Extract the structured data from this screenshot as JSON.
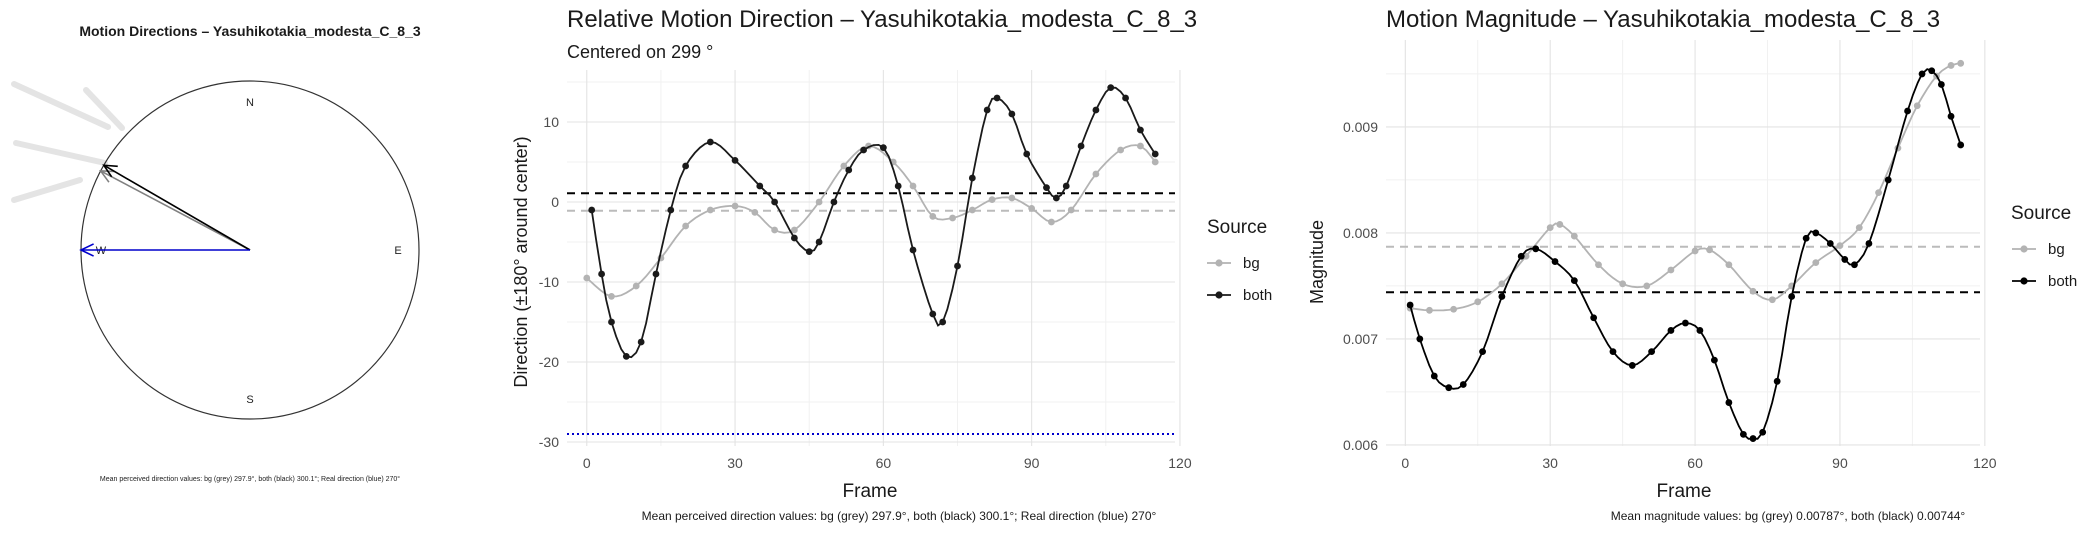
{
  "chart_data": [
    {
      "type": "compass",
      "title": "Motion Directions – Yasuhikotakia_modesta_C_8_3",
      "compass_labels": {
        "n": "N",
        "e": "E",
        "s": "S",
        "w": "W"
      },
      "arrows": [
        {
          "series": "bg",
          "direction_deg": 297.9,
          "color": "#808080"
        },
        {
          "series": "both",
          "direction_deg": 300.1,
          "color": "#000000"
        },
        {
          "series": "real",
          "direction_deg": 270,
          "color": "#0000cc"
        }
      ],
      "caption": "Mean perceived direction values: bg (grey) 297.9°, both (black) 300.1°; Real direction (blue) 270°"
    },
    {
      "type": "line",
      "title": "Relative Motion Direction – Yasuhikotakia_modesta_C_8_3",
      "subtitle": "Centered on  299 °",
      "xlabel": "Frame",
      "ylabel": "Direction (±180° around center)",
      "xlim": [
        -4,
        119
      ],
      "ylim": [
        -30.5,
        16.5
      ],
      "xticks": [
        "0",
        "30",
        "60",
        "90",
        "120"
      ],
      "yticks": [
        "10",
        "0",
        "-10",
        "-20",
        "-30"
      ],
      "legend_title": "Source",
      "legend_position": "right",
      "hlines": [
        {
          "series": "bg",
          "y": -1.1,
          "style": "dashed",
          "color": "#bbbbbb"
        },
        {
          "series": "both",
          "y": 1.1,
          "style": "dashed",
          "color": "#000000"
        },
        {
          "series": "real",
          "y": -29,
          "style": "dotted",
          "color": "#0000cc"
        }
      ],
      "series": [
        {
          "name": "bg",
          "color": "#b3b3b3",
          "points": [
            [
              0,
              -9.5
            ],
            [
              5,
              -11.8
            ],
            [
              10,
              -10.5
            ],
            [
              15,
              -7
            ],
            [
              20,
              -3
            ],
            [
              25,
              -1
            ],
            [
              30,
              -0.5
            ],
            [
              34,
              -1.3
            ],
            [
              38,
              -3.5
            ],
            [
              42,
              -3.5
            ],
            [
              47,
              0
            ],
            [
              52,
              4.5
            ],
            [
              57,
              7
            ],
            [
              62,
              5
            ],
            [
              66,
              2
            ],
            [
              70,
              -1.8
            ],
            [
              74,
              -2
            ],
            [
              78,
              -1
            ],
            [
              82,
              0.3
            ],
            [
              86,
              0.5
            ],
            [
              90,
              -0.8
            ],
            [
              94,
              -2.5
            ],
            [
              98,
              -1
            ],
            [
              103,
              3.5
            ],
            [
              108,
              6.5
            ],
            [
              112,
              7
            ],
            [
              115,
              5
            ]
          ]
        },
        {
          "name": "both",
          "color": "#1a1a1a",
          "points": [
            [
              1,
              -1
            ],
            [
              3,
              -9
            ],
            [
              5,
              -15
            ],
            [
              8,
              -19.3
            ],
            [
              11,
              -17.5
            ],
            [
              14,
              -9
            ],
            [
              17,
              -1
            ],
            [
              20,
              4.5
            ],
            [
              25,
              7.5
            ],
            [
              30,
              5.2
            ],
            [
              35,
              2
            ],
            [
              38,
              0
            ],
            [
              42,
              -4.5
            ],
            [
              45,
              -6.2
            ],
            [
              47,
              -5
            ],
            [
              50,
              0
            ],
            [
              53,
              4
            ],
            [
              56,
              6.5
            ],
            [
              60,
              6.8
            ],
            [
              63,
              2
            ],
            [
              66,
              -6
            ],
            [
              70,
              -14
            ],
            [
              72,
              -15
            ],
            [
              75,
              -8
            ],
            [
              78,
              3
            ],
            [
              81,
              11.5
            ],
            [
              83,
              13
            ],
            [
              86,
              11
            ],
            [
              89,
              6
            ],
            [
              93,
              1.8
            ],
            [
              95,
              0.5
            ],
            [
              97,
              2
            ],
            [
              100,
              7
            ],
            [
              103,
              11.5
            ],
            [
              106,
              14.3
            ],
            [
              109,
              13
            ],
            [
              112,
              9
            ],
            [
              115,
              6
            ]
          ]
        }
      ],
      "legend": [
        {
          "label": "bg",
          "color": "#b3b3b3"
        },
        {
          "label": "both",
          "color": "#1a1a1a"
        }
      ],
      "caption": "Mean perceived direction values: bg (grey) 297.9°, both (black) 300.1°; Real direction (blue) 270°"
    },
    {
      "type": "line",
      "title": "Motion Magnitude – Yasuhikotakia_modesta_C_8_3",
      "xlabel": "Frame",
      "ylabel": "Magnitude",
      "xlim": [
        -4,
        119
      ],
      "ylim": [
        0.00599,
        0.00982
      ],
      "xticks": [
        "0",
        "30",
        "60",
        "90",
        "120"
      ],
      "yticks": [
        "0.009",
        "0.008",
        "0.007",
        "0.006"
      ],
      "legend_title": "Source",
      "legend_position": "right",
      "hlines": [
        {
          "series": "bg",
          "y": 0.00787,
          "style": "dashed",
          "color": "#bbbbbb"
        },
        {
          "series": "both",
          "y": 0.00744,
          "style": "dashed",
          "color": "#000000"
        }
      ],
      "series": [
        {
          "name": "bg",
          "color": "#b3b3b3",
          "points": [
            [
              1,
              0.00729
            ],
            [
              5,
              0.00727
            ],
            [
              10,
              0.00728
            ],
            [
              15,
              0.00735
            ],
            [
              20,
              0.00752
            ],
            [
              25,
              0.00778
            ],
            [
              30,
              0.00805
            ],
            [
              32,
              0.00808
            ],
            [
              35,
              0.00797
            ],
            [
              40,
              0.0077
            ],
            [
              45,
              0.00752
            ],
            [
              50,
              0.0075
            ],
            [
              55,
              0.00765
            ],
            [
              60,
              0.00783
            ],
            [
              63,
              0.00784
            ],
            [
              67,
              0.0077
            ],
            [
              72,
              0.00745
            ],
            [
              76,
              0.00737
            ],
            [
              80,
              0.0075
            ],
            [
              85,
              0.00772
            ],
            [
              90,
              0.00788
            ],
            [
              94,
              0.00805
            ],
            [
              98,
              0.00838
            ],
            [
              102,
              0.0088
            ],
            [
              106,
              0.0092
            ],
            [
              110,
              0.00948
            ],
            [
              113,
              0.00958
            ],
            [
              115,
              0.0096
            ]
          ]
        },
        {
          "name": "both",
          "color": "#000000",
          "points": [
            [
              1,
              0.00732
            ],
            [
              3,
              0.007
            ],
            [
              6,
              0.00665
            ],
            [
              9,
              0.00654
            ],
            [
              12,
              0.00657
            ],
            [
              16,
              0.00688
            ],
            [
              20,
              0.0074
            ],
            [
              24,
              0.00778
            ],
            [
              27,
              0.00785
            ],
            [
              31,
              0.00773
            ],
            [
              35,
              0.00755
            ],
            [
              39,
              0.0072
            ],
            [
              43,
              0.00688
            ],
            [
              47,
              0.00675
            ],
            [
              51,
              0.00688
            ],
            [
              55,
              0.00708
            ],
            [
              58,
              0.00715
            ],
            [
              61,
              0.00708
            ],
            [
              64,
              0.0068
            ],
            [
              67,
              0.0064
            ],
            [
              70,
              0.0061
            ],
            [
              72,
              0.00606
            ],
            [
              74,
              0.00612
            ],
            [
              77,
              0.0066
            ],
            [
              80,
              0.0074
            ],
            [
              83,
              0.00795
            ],
            [
              85,
              0.008
            ],
            [
              88,
              0.0079
            ],
            [
              91,
              0.00775
            ],
            [
              93,
              0.0077
            ],
            [
              96,
              0.0079
            ],
            [
              100,
              0.0085
            ],
            [
              104,
              0.00915
            ],
            [
              107,
              0.0095
            ],
            [
              109,
              0.00953
            ],
            [
              111,
              0.0094
            ],
            [
              113,
              0.0091
            ],
            [
              115,
              0.00883
            ]
          ]
        }
      ],
      "legend": [
        {
          "label": "bg",
          "color": "#b3b3b3"
        },
        {
          "label": "both",
          "color": "#000000"
        }
      ],
      "caption": "Mean magnitude values: bg (grey) 0.00787°, both (black) 0.00744°"
    }
  ]
}
